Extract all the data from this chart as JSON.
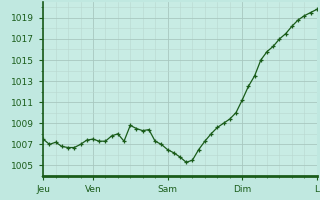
{
  "background_color": "#c0e8e0",
  "plot_bg_color": "#c8ece4",
  "grid_color_major": "#a8c8c0",
  "grid_color_minor": "#b8d8d0",
  "line_color": "#1a5c1a",
  "marker_color": "#1a5c1a",
  "x_tick_labels": [
    "Jeu",
    "Ven",
    "Sam",
    "Dim",
    "L"
  ],
  "x_tick_positions": [
    0,
    8,
    20,
    32,
    44
  ],
  "ylim": [
    1004.0,
    1020.5
  ],
  "yticks": [
    1005,
    1007,
    1009,
    1011,
    1013,
    1015,
    1017,
    1019
  ],
  "data_y": [
    1007.5,
    1007.0,
    1007.2,
    1006.8,
    1006.7,
    1006.7,
    1007.0,
    1007.4,
    1007.5,
    1007.3,
    1007.3,
    1007.8,
    1008.0,
    1007.3,
    1008.8,
    1008.5,
    1008.3,
    1008.4,
    1007.3,
    1007.0,
    1006.5,
    1006.2,
    1005.8,
    1005.3,
    1005.5,
    1006.5,
    1007.3,
    1008.0,
    1008.6,
    1009.0,
    1009.4,
    1010.0,
    1011.2,
    1012.5,
    1013.5,
    1015.0,
    1015.8,
    1016.3,
    1017.0,
    1017.5,
    1018.2,
    1018.8,
    1019.2,
    1019.5,
    1019.8
  ]
}
